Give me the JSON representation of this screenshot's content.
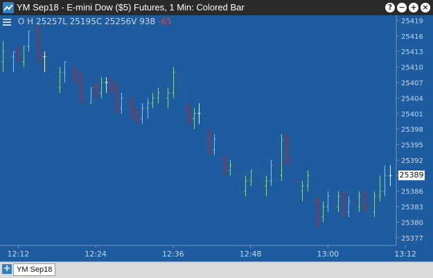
{
  "window": {
    "title": "YM Sep18 - E-mini Dow ($5) Futures, 1 Min: Colored Bar",
    "help_glyph": "?",
    "minimize_glyph": "−",
    "maximize_glyph": "+",
    "close_glyph": "×"
  },
  "legend": {
    "open_label": "O",
    "open_value": "",
    "high_label": "H",
    "high_value": "25257L",
    "low_value": "25195C",
    "close_value": "25256V",
    "volume_value": "938",
    "change_value": "-65"
  },
  "last_price": "25389",
  "tabs": [
    {
      "label": "YM Sep18"
    }
  ],
  "colors": {
    "background": "#1d5c9e",
    "up_bar": "#8fd19e",
    "down_bar": "#a0303f",
    "flat_bar": "#ffffff",
    "axis_text": "#c8d6e8",
    "titlebar": "#2a2a2a"
  },
  "chart_data": {
    "type": "ohlc",
    "title": "YM Sep18 - E-mini Dow ($5) Futures, 1 Min: Colored Bar",
    "xlabel": "",
    "ylabel": "",
    "ylim": [
      25375.5,
      25420
    ],
    "y_ticks": [
      25377,
      25380,
      25383,
      25386,
      25389,
      25392,
      25395,
      25398,
      25401,
      25404,
      25407,
      25410,
      25413,
      25416,
      25419
    ],
    "x_ticks": [
      "12:12",
      "12:24",
      "12:36",
      "12:48",
      "13:00",
      "13:12"
    ],
    "x_tick_bar_index": [
      3,
      18,
      33,
      48,
      63,
      78
    ],
    "bars": [
      [
        25411,
        25415,
        25409,
        25413
      ],
      [
        25413,
        25416,
        25410,
        25412
      ],
      [
        25412,
        25413,
        25409,
        25413
      ],
      [
        25413,
        25414,
        25411,
        25411
      ],
      [
        25411,
        25414,
        25410,
        25414
      ],
      [
        25414,
        25417,
        25413,
        25417
      ],
      [
        25417,
        25419,
        25414,
        25415
      ],
      [
        25415,
        25418,
        25411,
        25412
      ],
      [
        25412,
        25413,
        25409,
        25412
      ],
      [
        25412,
        25413,
        25407,
        25407
      ],
      [
        25407,
        25409,
        25405,
        25406
      ],
      [
        25406,
        25410,
        25405,
        25409
      ],
      [
        25409,
        25411,
        25407,
        25411
      ],
      [
        25411,
        25413,
        25409,
        25409
      ],
      [
        25409,
        25410,
        25407,
        25408
      ],
      [
        25408,
        25409,
        25403,
        25404
      ],
      [
        25404,
        25405,
        25402,
        25403
      ],
      [
        25403,
        25406,
        25403,
        25406
      ],
      [
        25406,
        25407,
        25404,
        25405
      ],
      [
        25405,
        25408,
        25404,
        25407
      ],
      [
        25407,
        25408,
        25405,
        25407
      ],
      [
        25407,
        25408,
        25405,
        25406
      ],
      [
        25406,
        25407,
        25401,
        25402
      ],
      [
        25402,
        25405,
        25401,
        25404
      ],
      [
        25404,
        25406,
        25403,
        25403
      ],
      [
        25403,
        25404,
        25400,
        25401
      ],
      [
        25401,
        25402,
        25399,
        25400
      ],
      [
        25400,
        25403,
        25399,
        25402
      ],
      [
        25402,
        25404,
        25400,
        25403
      ],
      [
        25403,
        25405,
        25402,
        25404
      ],
      [
        25404,
        25406,
        25403,
        25405
      ],
      [
        25405,
        25407,
        25402,
        25404
      ],
      [
        25404,
        25406,
        25402,
        25405
      ],
      [
        25405,
        25410,
        25404,
        25409
      ],
      [
        25409,
        25409,
        25404,
        25405
      ],
      [
        25405,
        25406,
        25401,
        25402
      ],
      [
        25402,
        25403,
        25399,
        25400
      ],
      [
        25400,
        25402,
        25398,
        25401
      ],
      [
        25401,
        25403,
        25399,
        25401
      ],
      [
        25401,
        25402,
        25396,
        25397
      ],
      [
        25397,
        25398,
        25393,
        25394
      ],
      [
        25394,
        25397,
        25393,
        25396
      ],
      [
        25396,
        25397,
        25391,
        25392
      ],
      [
        25392,
        25393,
        25389,
        25390
      ],
      [
        25390,
        25392,
        25389,
        25391
      ],
      [
        25391,
        25393,
        25388,
        25389
      ],
      [
        25389,
        25390,
        25385,
        25386
      ],
      [
        25386,
        25389,
        25385,
        25388
      ],
      [
        25388,
        25390,
        25387,
        25390
      ],
      [
        25390,
        25392,
        25388,
        25389
      ],
      [
        25389,
        25391,
        25386,
        25387
      ],
      [
        25387,
        25389,
        25385,
        25388
      ],
      [
        25388,
        25392,
        25387,
        25391
      ],
      [
        25391,
        25392,
        25388,
        25389
      ],
      [
        25389,
        25397,
        25388,
        25396
      ],
      [
        25396,
        25397,
        25391,
        25392
      ],
      [
        25392,
        25393,
        25387,
        25388
      ],
      [
        25388,
        25390,
        25385,
        25386
      ],
      [
        25386,
        25388,
        25384,
        25387
      ],
      [
        25387,
        25390,
        25386,
        25389
      ],
      [
        25389,
        25391,
        25383,
        25384
      ],
      [
        25384,
        25385,
        25379,
        25381
      ],
      [
        25381,
        25384,
        25380,
        25383
      ],
      [
        25383,
        25386,
        25382,
        25385
      ],
      [
        25385,
        25386,
        25382,
        25383
      ],
      [
        25383,
        25386,
        25382,
        25385
      ],
      [
        25385,
        25386,
        25381,
        25382
      ],
      [
        25382,
        25385,
        25381,
        25384
      ],
      [
        25384,
        25386,
        25382,
        25383
      ],
      [
        25383,
        25386,
        25382,
        25385
      ],
      [
        25385,
        25386,
        25382,
        25383
      ],
      [
        25383,
        25385,
        25381,
        25382
      ],
      [
        25382,
        25386,
        25381,
        25385
      ],
      [
        25385,
        25389,
        25384,
        25386
      ],
      [
        25386,
        25391,
        25385,
        25389
      ],
      [
        25389,
        25391,
        25387,
        25389
      ]
    ]
  }
}
